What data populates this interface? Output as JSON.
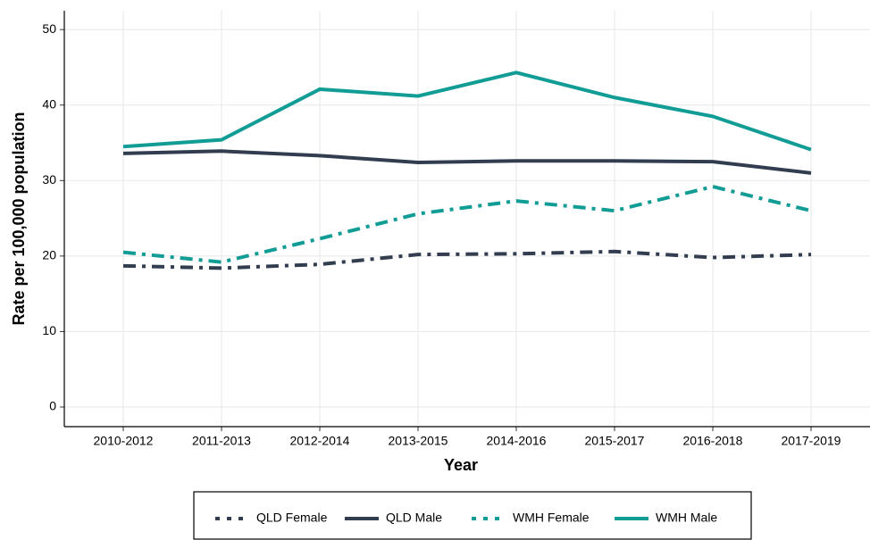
{
  "chart_data": {
    "type": "line",
    "xlabel": "Year",
    "ylabel": "Rate per 100,000 population",
    "categories": [
      "2010-2012",
      "2011-2013",
      "2012-2014",
      "2013-2015",
      "2014-2016",
      "2015-2017",
      "2016-2018",
      "2017-2019"
    ],
    "series": [
      {
        "name": "QLD Female",
        "color": "#323d4f",
        "dash": "dashdot",
        "values": [
          18.7,
          18.4,
          18.9,
          20.2,
          20.3,
          20.6,
          19.8,
          20.2
        ]
      },
      {
        "name": "QLD Male",
        "color": "#323d4f",
        "dash": "solid",
        "values": [
          33.6,
          33.9,
          33.3,
          32.4,
          32.6,
          32.6,
          32.5,
          31.0
        ]
      },
      {
        "name": "WMH Female",
        "color": "#129c96",
        "dash": "dashdot",
        "values": [
          20.5,
          19.2,
          22.3,
          25.6,
          27.3,
          26.0,
          29.2,
          26.0
        ]
      },
      {
        "name": "WMH Male",
        "color": "#129c96",
        "dash": "solid",
        "values": [
          34.5,
          35.4,
          42.1,
          41.2,
          44.3,
          41.0,
          38.5,
          34.1
        ]
      }
    ],
    "ylim": [
      -2.6,
      52.5
    ],
    "yticks": [
      0,
      10,
      20,
      30,
      40,
      50
    ],
    "grid": true,
    "legend": "bottom"
  }
}
